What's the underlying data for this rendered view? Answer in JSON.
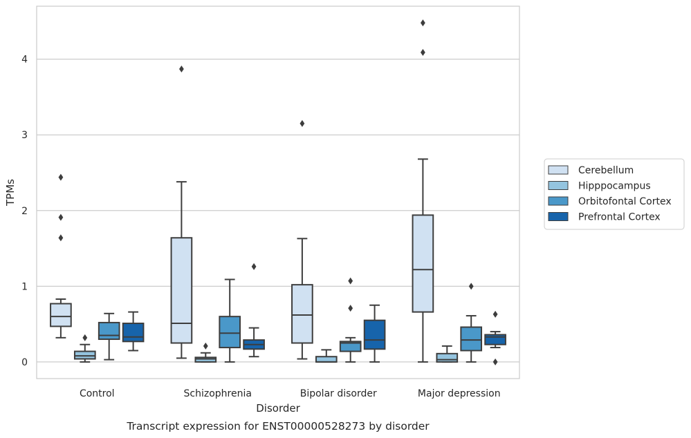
{
  "caption": "Transcript expression for ENST00000528273 by disorder",
  "chart_data": {
    "type": "box",
    "xlabel": "Disorder",
    "ylabel": "TPMs",
    "ylim": [
      -0.22,
      4.7
    ],
    "yticks": [
      0,
      1,
      2,
      3,
      4
    ],
    "grid": "horizontal",
    "legend_position": "right",
    "categories": [
      "Control",
      "Schizophrenia",
      "Bipolar disorder",
      "Major depression"
    ],
    "series": [
      {
        "name": "Cerebellum",
        "color": "#d0e1f2",
        "boxes": [
          {
            "whislo": 0.32,
            "q1": 0.47,
            "med": 0.6,
            "q3": 0.77,
            "whishi": 0.83,
            "fliers": [
              1.64,
              1.91,
              2.44
            ]
          },
          {
            "whislo": 0.05,
            "q1": 0.25,
            "med": 0.51,
            "q3": 1.64,
            "whishi": 2.38,
            "fliers": [
              3.87
            ]
          },
          {
            "whislo": 0.04,
            "q1": 0.25,
            "med": 0.62,
            "q3": 1.02,
            "whishi": 1.63,
            "fliers": [
              3.15
            ]
          },
          {
            "whislo": 0.0,
            "q1": 0.66,
            "med": 1.22,
            "q3": 1.94,
            "whishi": 2.68,
            "fliers": [
              4.09,
              4.48
            ]
          }
        ]
      },
      {
        "name": "Hipppocampus",
        "color": "#94c4df",
        "boxes": [
          {
            "whislo": 0.0,
            "q1": 0.04,
            "med": 0.08,
            "q3": 0.14,
            "whishi": 0.23,
            "fliers": [
              0.32
            ]
          },
          {
            "whislo": 0.0,
            "q1": 0.0,
            "med": 0.04,
            "q3": 0.06,
            "whishi": 0.12,
            "fliers": [
              0.21
            ]
          },
          {
            "whislo": 0.0,
            "q1": 0.0,
            "med": 0.0,
            "q3": 0.07,
            "whishi": 0.16,
            "fliers": []
          },
          {
            "whislo": 0.0,
            "q1": 0.0,
            "med": 0.03,
            "q3": 0.11,
            "whishi": 0.21,
            "fliers": []
          }
        ]
      },
      {
        "name": "Orbitofontal Cortex",
        "color": "#4a98c9",
        "boxes": [
          {
            "whislo": 0.03,
            "q1": 0.3,
            "med": 0.35,
            "q3": 0.52,
            "whishi": 0.64,
            "fliers": []
          },
          {
            "whislo": 0.0,
            "q1": 0.19,
            "med": 0.38,
            "q3": 0.6,
            "whishi": 1.09,
            "fliers": []
          },
          {
            "whislo": 0.0,
            "q1": 0.14,
            "med": 0.25,
            "q3": 0.27,
            "whishi": 0.32,
            "fliers": [
              0.71,
              1.07
            ]
          },
          {
            "whislo": 0.0,
            "q1": 0.15,
            "med": 0.29,
            "q3": 0.46,
            "whishi": 0.61,
            "fliers": [
              1.0
            ]
          }
        ]
      },
      {
        "name": "Prefrontal Cortex",
        "color": "#1764ab",
        "boxes": [
          {
            "whislo": 0.15,
            "q1": 0.27,
            "med": 0.33,
            "q3": 0.51,
            "whishi": 0.66,
            "fliers": []
          },
          {
            "whislo": 0.07,
            "q1": 0.17,
            "med": 0.23,
            "q3": 0.29,
            "whishi": 0.45,
            "fliers": [
              1.26
            ]
          },
          {
            "whislo": 0.0,
            "q1": 0.17,
            "med": 0.29,
            "q3": 0.55,
            "whishi": 0.75,
            "fliers": []
          },
          {
            "whislo": 0.19,
            "q1": 0.23,
            "med": 0.33,
            "q3": 0.36,
            "whishi": 0.4,
            "fliers": [
              0.0,
              0.63
            ]
          }
        ]
      }
    ]
  }
}
